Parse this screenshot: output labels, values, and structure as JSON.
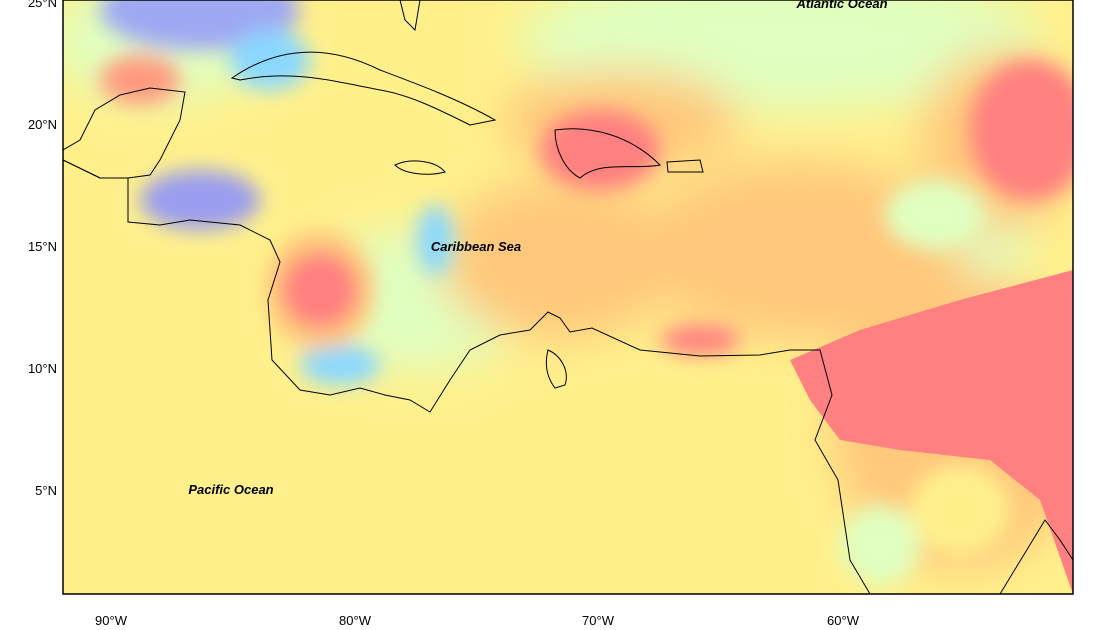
{
  "map": {
    "lat_ticks": [
      "25°N",
      "20°N",
      "15°N",
      "10°N",
      "5°N"
    ],
    "lon_ticks": [
      "90°W",
      "80°W",
      "70°W",
      "60°W"
    ],
    "labels": [
      "Atlantic Ocean",
      "Caribbean Sea",
      "Pacific Ocean"
    ]
  }
}
